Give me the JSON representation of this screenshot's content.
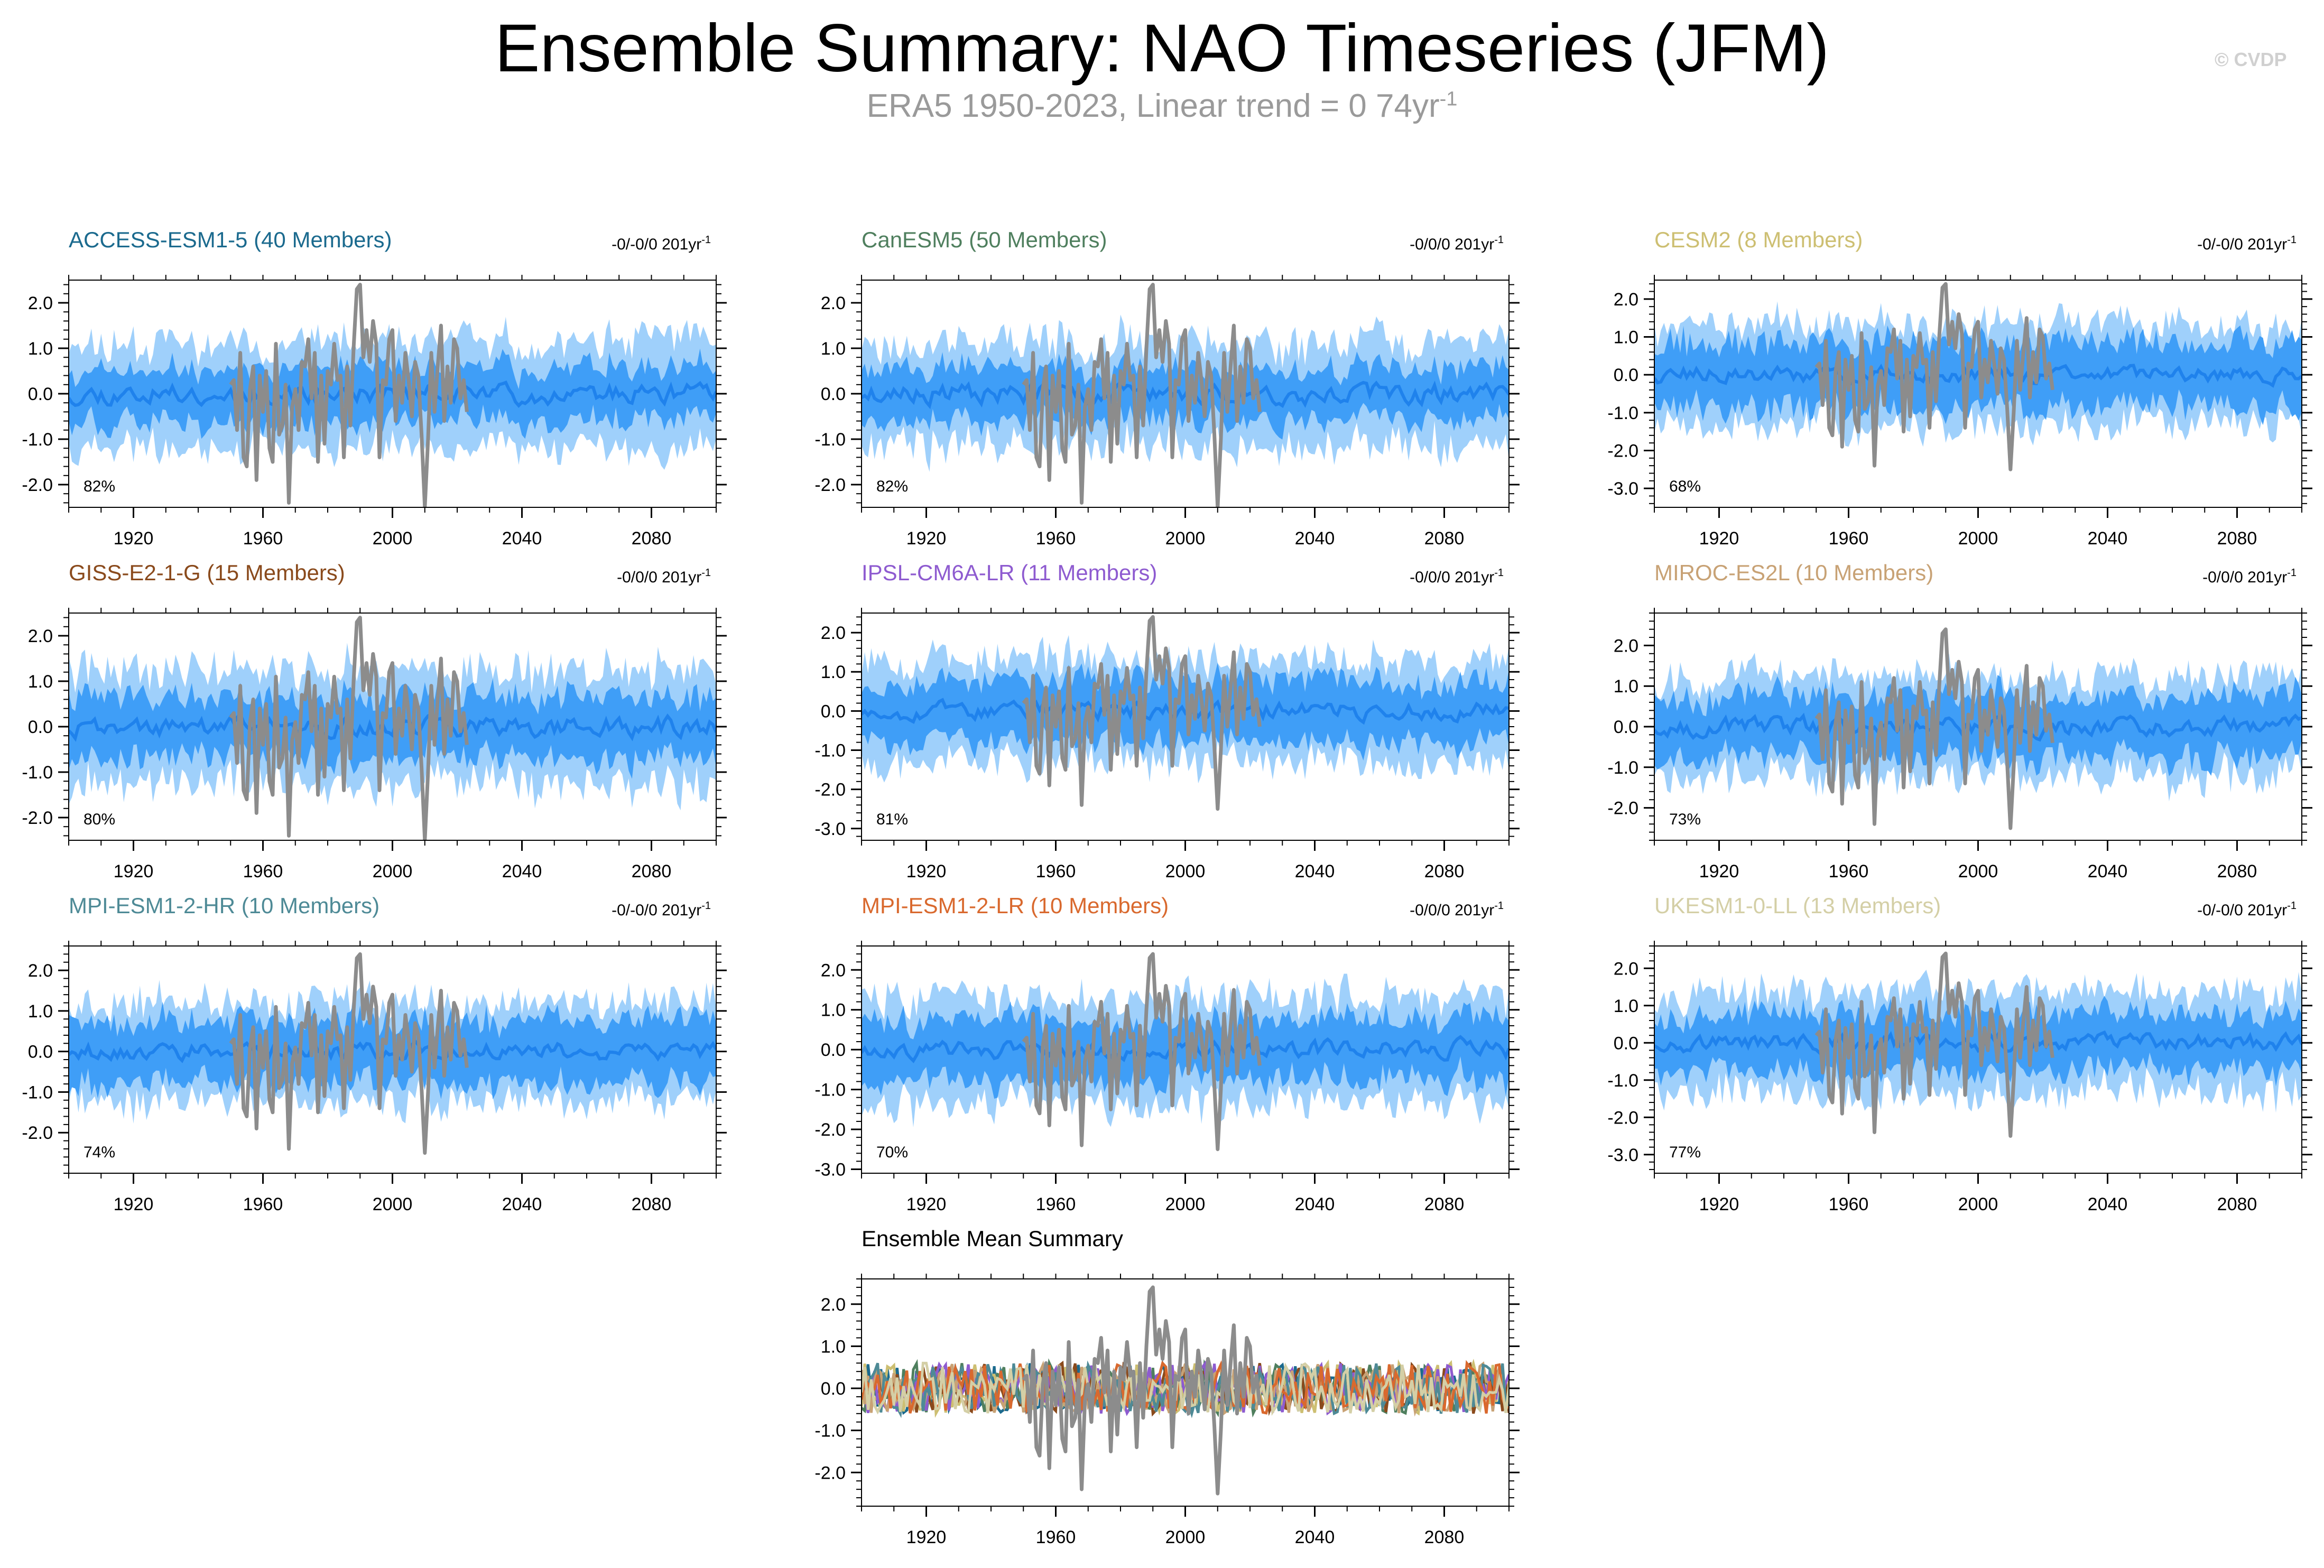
{
  "figure": {
    "title": "Ensemble Summary: NAO Timeseries (JFM)",
    "subtitle_text": "ERA5 1950-2023, Linear trend = 0 74yr",
    "subtitle_exponent": "-1",
    "watermark": "© CVDP"
  },
  "colors": {
    "outer_band": "#9fd0fb",
    "inner_band": "#3f9ef7",
    "ensemble_mean": "#1f82ec",
    "observed": "#8c8c8c"
  },
  "chart_data": [
    {
      "type": "area",
      "title": "ACCESS-ESM1-5 (40 Members)",
      "title_color": "#1b6a8e",
      "trend": "-0/-0/0 201yr",
      "trend_exp": "-1",
      "percent": "82%",
      "ylim": [
        -2.5,
        2.5
      ],
      "yticks": [
        2.0,
        1.0,
        0.0,
        -1.0,
        -2.0
      ],
      "ytick_labels": [
        "2.0",
        "1.0",
        "0.0",
        "-1.0",
        "-2.0"
      ],
      "xlim": [
        1900,
        2100
      ],
      "xticks": [
        1920,
        1960,
        2000,
        2040,
        2080
      ],
      "outer_halfwidth": 1.2,
      "inner_halfwidth": 0.6,
      "seed": 11
    },
    {
      "type": "area",
      "title": "CanESM5 (50 Members)",
      "title_color": "#4f7f5e",
      "trend": "-0/0/0 201yr",
      "trend_exp": "-1",
      "percent": "82%",
      "ylim": [
        -2.5,
        2.5
      ],
      "yticks": [
        2.0,
        1.0,
        0.0,
        -1.0,
        -2.0
      ],
      "ytick_labels": [
        "2.0",
        "1.0",
        "0.0",
        "-1.0",
        "-2.0"
      ],
      "xlim": [
        1900,
        2100
      ],
      "xticks": [
        1920,
        1960,
        2000,
        2040,
        2080
      ],
      "outer_halfwidth": 1.2,
      "inner_halfwidth": 0.6,
      "seed": 23
    },
    {
      "type": "area",
      "title": "CESM2 (8 Members)",
      "title_color": "#cdbf72",
      "trend": "-0/-0/0 201yr",
      "trend_exp": "-1",
      "percent": "68%",
      "ylim": [
        -3.5,
        2.5
      ],
      "yticks": [
        2.0,
        1.0,
        0.0,
        -1.0,
        -2.0,
        -3.0
      ],
      "ytick_labels": [
        "2.0",
        "1.0",
        "0.0",
        "-1.0",
        "-2.0",
        "-3.0"
      ],
      "xlim": [
        1900,
        2100
      ],
      "xticks": [
        1920,
        1960,
        2000,
        2040,
        2080
      ],
      "outer_halfwidth": 1.4,
      "inner_halfwidth": 0.9,
      "seed": 37
    },
    {
      "type": "area",
      "title": "GISS-E2-1-G (15 Members)",
      "title_color": "#8a4a1c",
      "trend": "-0/0/0 201yr",
      "trend_exp": "-1",
      "percent": "80%",
      "ylim": [
        -2.5,
        2.5
      ],
      "yticks": [
        2.0,
        1.0,
        0.0,
        -1.0,
        -2.0
      ],
      "ytick_labels": [
        "2.0",
        "1.0",
        "0.0",
        "-1.0",
        "-2.0"
      ],
      "xlim": [
        1900,
        2100
      ],
      "xticks": [
        1920,
        1960,
        2000,
        2040,
        2080
      ],
      "outer_halfwidth": 1.3,
      "inner_halfwidth": 0.7,
      "seed": 41
    },
    {
      "type": "area",
      "title": "IPSL-CM6A-LR (11 Members)",
      "title_color": "#8e5bd0",
      "trend": "-0/0/0 201yr",
      "trend_exp": "-1",
      "percent": "81%",
      "ylim": [
        -3.3,
        2.5
      ],
      "yticks": [
        2.0,
        1.0,
        0.0,
        -1.0,
        -2.0,
        -3.0
      ],
      "ytick_labels": [
        "2.0",
        "1.0",
        "0.0",
        "-1.0",
        "-2.0",
        "-3.0"
      ],
      "xlim": [
        1900,
        2100
      ],
      "xticks": [
        1920,
        1960,
        2000,
        2040,
        2080
      ],
      "outer_halfwidth": 1.4,
      "inner_halfwidth": 0.8,
      "seed": 53
    },
    {
      "type": "area",
      "title": "MIROC-ES2L (10 Members)",
      "title_color": "#c8a275",
      "trend": "-0/0/0 201yr",
      "trend_exp": "-1",
      "percent": "73%",
      "ylim": [
        -2.8,
        2.8
      ],
      "yticks": [
        2.0,
        1.0,
        0.0,
        -1.0,
        -2.0
      ],
      "ytick_labels": [
        "2.0",
        "1.0",
        "0.0",
        "-1.0",
        "-2.0"
      ],
      "xlim": [
        1900,
        2100
      ],
      "xticks": [
        1920,
        1960,
        2000,
        2040,
        2080
      ],
      "outer_halfwidth": 1.3,
      "inner_halfwidth": 0.8,
      "seed": 67
    },
    {
      "type": "area",
      "title": "MPI-ESM1-2-HR (10 Members)",
      "title_color": "#4e8a96",
      "trend": "-0/-0/0 201yr",
      "trend_exp": "-1",
      "percent": "74%",
      "ylim": [
        -3.0,
        2.6
      ],
      "yticks": [
        2.0,
        1.0,
        0.0,
        -1.0,
        -2.0
      ],
      "ytick_labels": [
        "2.0",
        "1.0",
        "0.0",
        "-1.0",
        "-2.0"
      ],
      "xlim": [
        1900,
        2100
      ],
      "xticks": [
        1920,
        1960,
        2000,
        2040,
        2080
      ],
      "outer_halfwidth": 1.3,
      "inner_halfwidth": 0.8,
      "seed": 79
    },
    {
      "type": "area",
      "title": "MPI-ESM1-2-LR (10 Members)",
      "title_color": "#d9692e",
      "trend": "-0/0/0 201yr",
      "trend_exp": "-1",
      "percent": "70%",
      "ylim": [
        -3.1,
        2.6
      ],
      "yticks": [
        2.0,
        1.0,
        0.0,
        -1.0,
        -2.0,
        -3.0
      ],
      "ytick_labels": [
        "2.0",
        "1.0",
        "0.0",
        "-1.0",
        "-2.0",
        "-3.0"
      ],
      "xlim": [
        1900,
        2100
      ],
      "xticks": [
        1920,
        1960,
        2000,
        2040,
        2080
      ],
      "outer_halfwidth": 1.4,
      "inner_halfwidth": 0.8,
      "seed": 83
    },
    {
      "type": "area",
      "title": "UKESM1-0-LL (13 Members)",
      "title_color": "#d4cfa6",
      "trend": "-0/-0/0 201yr",
      "trend_exp": "-1",
      "percent": "77%",
      "ylim": [
        -3.5,
        2.6
      ],
      "yticks": [
        2.0,
        1.0,
        0.0,
        -1.0,
        -2.0,
        -3.0
      ],
      "ytick_labels": [
        "2.0",
        "1.0",
        "0.0",
        "-1.0",
        "-2.0",
        "-3.0"
      ],
      "xlim": [
        1900,
        2100
      ],
      "xticks": [
        1920,
        1960,
        2000,
        2040,
        2080
      ],
      "outer_halfwidth": 1.4,
      "inner_halfwidth": 0.8,
      "seed": 97
    },
    {
      "type": "line",
      "title": "Ensemble Mean Summary",
      "title_color": "#000000",
      "trend": "",
      "trend_exp": "",
      "percent": "",
      "ylim": [
        -2.8,
        2.6
      ],
      "yticks": [
        2.0,
        1.0,
        0.0,
        -1.0,
        -2.0
      ],
      "ytick_labels": [
        "2.0",
        "1.0",
        "0.0",
        "-1.0",
        "-2.0"
      ],
      "xlim": [
        1900,
        2100
      ],
      "xticks": [
        1920,
        1960,
        2000,
        2040,
        2080
      ],
      "series_colors": [
        "#1b6a8e",
        "#4f7f5e",
        "#cdbf72",
        "#8a4a1c",
        "#8e5bd0",
        "#c8a275",
        "#4e8a96",
        "#d9692e",
        "#d4cfa6"
      ],
      "seed": 101
    }
  ],
  "observed_series": {
    "name": "ERA5",
    "x_start": 1950,
    "values": [
      0.2,
      0.3,
      -0.8,
      0.9,
      -1.4,
      -1.6,
      0.1,
      0.6,
      -1.9,
      0.4,
      -0.4,
      0.5,
      -1.2,
      -1.5,
      1.1,
      -0.9,
      -0.7,
      0.2,
      -2.4,
      -0.3,
      0.1,
      -0.8,
      0.7,
      0.6,
      1.2,
      -0.1,
      0.9,
      -1.5,
      0.4,
      -1.1,
      0.5,
      0.2,
      1.1,
      0.3,
      0.4,
      -1.4,
      0.6,
      -0.7,
      1.0,
      2.3,
      2.4,
      0.8,
      1.4,
      0.7,
      1.6,
      1.1,
      -1.4,
      0.3,
      0.2,
      1.2,
      1.4,
      -0.6,
      0.4,
      -0.2,
      0.9,
      0.3,
      -0.5,
      0.7,
      0.4,
      -0.9,
      -2.5,
      -1.0,
      0.9,
      -0.4,
      0.6,
      1.5,
      -0.6,
      0.6,
      -0.2,
      1.2,
      1.0,
      -0.1,
      0.3,
      -0.4
    ]
  }
}
